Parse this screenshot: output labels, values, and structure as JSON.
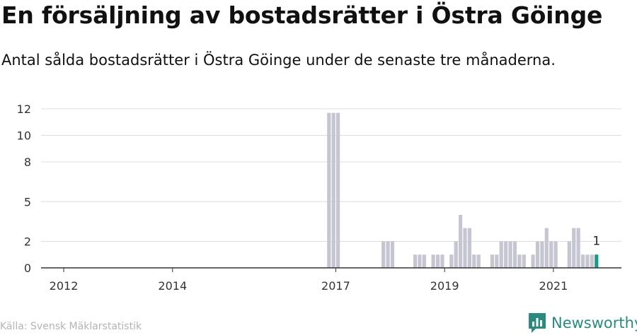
{
  "header": {
    "title": "En försäljning av bostadsrätter i Östra Göinge",
    "subtitle": "Antal sålda bostadsrätter i Östra Göinge under de senaste tre månaderna."
  },
  "footer": {
    "source": "Källa: Svensk Mäklarstatistik",
    "brand": "Newsworthy"
  },
  "colors": {
    "bar": "#c6c5d2",
    "highlight": "#1a9a8c",
    "grid": "#dddddd",
    "axis": "#333333",
    "brand": "#2a8a80"
  },
  "chart_data": {
    "type": "bar",
    "title": "",
    "xlabel": "",
    "ylabel": "",
    "ylim": [
      0,
      13
    ],
    "y_ticks": [
      0,
      2,
      5,
      8,
      10,
      12
    ],
    "y_tick_labels": [
      "0",
      "2",
      "5",
      "8",
      "10",
      "12"
    ],
    "x_ticks": [
      "2012-01",
      "2014-01",
      "2017-01",
      "2019-01",
      "2021-01"
    ],
    "x_tick_labels": [
      "2012",
      "2014",
      "2017",
      "2019",
      "2021"
    ],
    "x_range": [
      "2011-08",
      "2022-04"
    ],
    "grid": true,
    "highlight_label": "1",
    "series": [
      {
        "x": [
          "2016-11",
          "2016-12",
          "2017-01",
          "2017-11",
          "2017-12",
          "2018-01",
          "2018-06",
          "2018-07",
          "2018-08",
          "2018-10",
          "2018-11",
          "2018-12",
          "2019-02",
          "2019-03",
          "2019-04",
          "2019-05",
          "2019-06",
          "2019-07",
          "2019-08",
          "2019-11",
          "2019-12",
          "2020-01",
          "2020-02",
          "2020-03",
          "2020-04",
          "2020-05",
          "2020-06",
          "2020-08",
          "2020-09",
          "2020-10",
          "2020-11",
          "2020-12",
          "2021-01",
          "2021-04",
          "2021-05",
          "2021-06",
          "2021-07",
          "2021-08",
          "2021-09",
          "2021-10"
        ],
        "values": [
          11.7,
          11.7,
          11.7,
          2,
          2,
          2,
          1,
          1,
          1,
          1,
          1,
          1,
          1,
          2,
          4,
          3,
          3,
          1,
          1,
          1,
          1,
          2,
          2,
          2,
          2,
          1,
          1,
          1,
          2,
          2,
          3,
          2,
          2,
          2,
          3,
          3,
          1,
          1,
          1,
          1
        ]
      }
    ],
    "highlight": {
      "x": "2021-10",
      "value": 1
    }
  }
}
